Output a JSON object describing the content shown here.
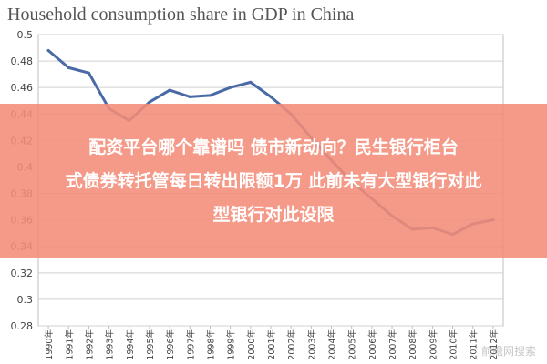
{
  "chart_data": {
    "type": "line",
    "title": "Household consumption share in GDP in China",
    "xlabel": "",
    "ylabel": "",
    "categories": [
      "1990年",
      "1991年",
      "1992年",
      "1993年",
      "1994年",
      "1995年",
      "1996年",
      "1997年",
      "1998年",
      "1999年",
      "2000年",
      "2001年",
      "2002年",
      "2003年",
      "2004年",
      "2005年",
      "2006年",
      "2007年",
      "2008年",
      "2009年",
      "2010年",
      "2011年",
      "2012年"
    ],
    "series": [
      {
        "values": [
          0.488,
          0.475,
          0.471,
          0.444,
          0.435,
          0.449,
          0.458,
          0.453,
          0.454,
          0.46,
          0.464,
          0.453,
          0.44,
          0.422,
          0.405,
          0.389,
          0.376,
          0.363,
          0.353,
          0.354,
          0.349,
          0.357,
          0.36
        ]
      }
    ],
    "ylim": [
      0.28,
      0.5
    ],
    "yticks": [
      0.28,
      0.3,
      0.32,
      0.34,
      0.36,
      0.38,
      0.4,
      0.42,
      0.44,
      0.46,
      0.48,
      0.5
    ],
    "grid": true,
    "line_color": "#4a6aa6"
  },
  "banner": {
    "line1": "配资平台哪个靠谱吗 债市新动向？民生银行柜台",
    "line2": "式债券转托管每日转出限额1万 此前未有大型银行对此",
    "line3": "型银行对此设限"
  },
  "watermark": "前瞻网搜索"
}
